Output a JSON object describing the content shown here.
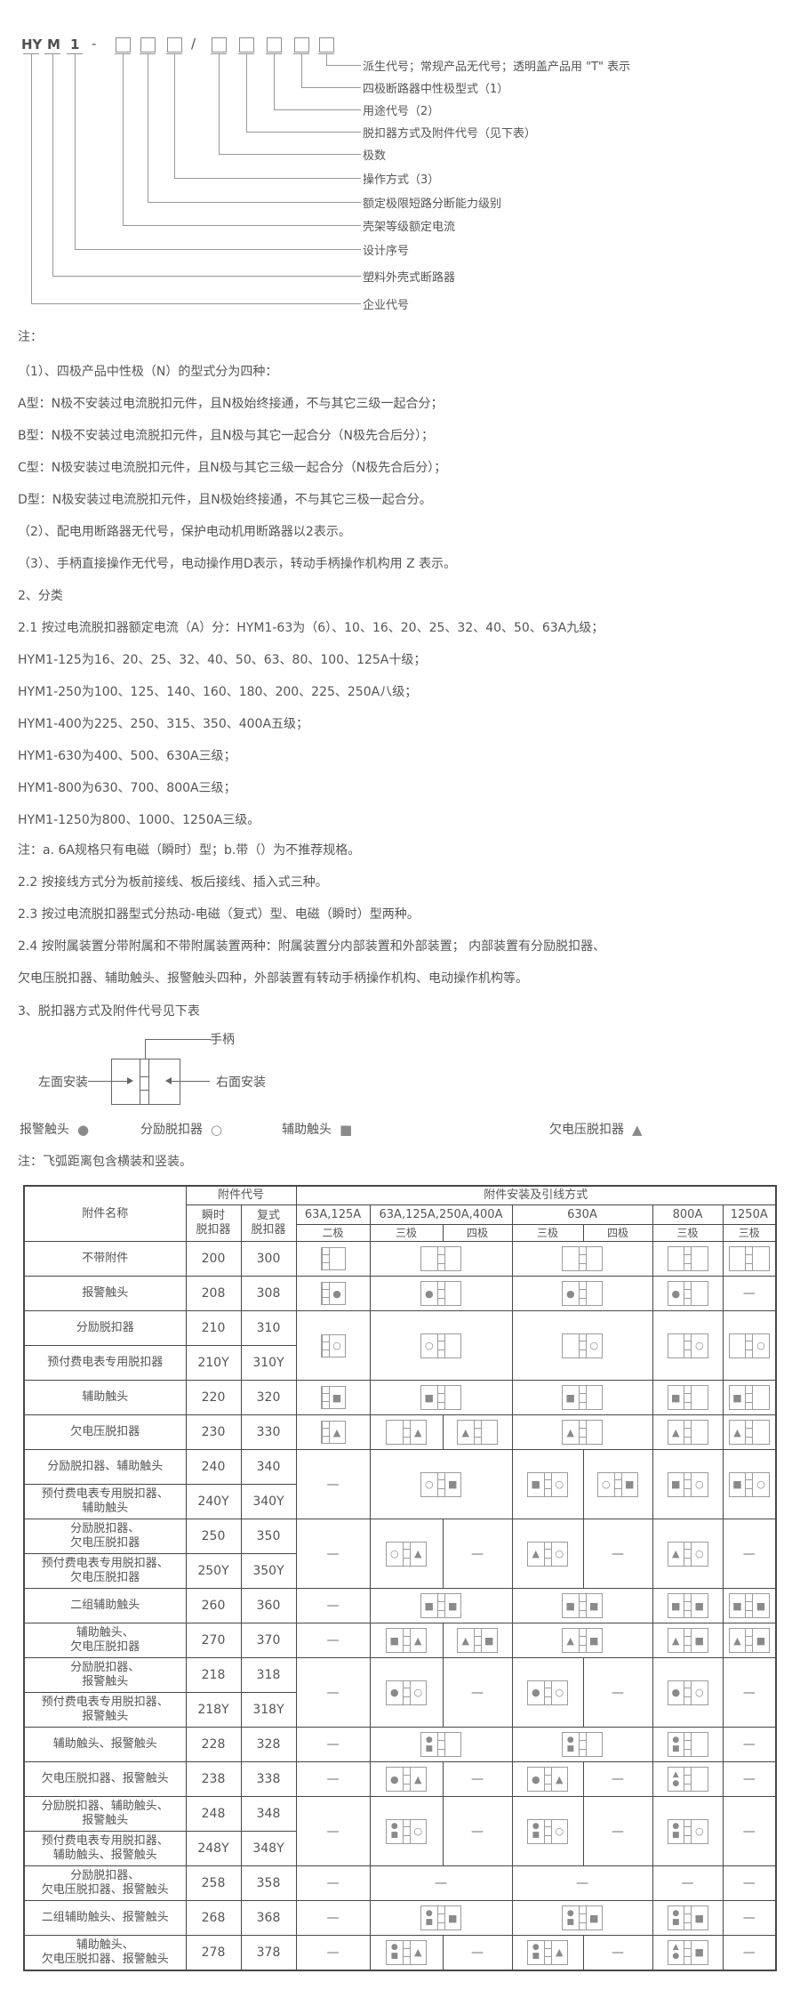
{
  "model_diagram": {
    "letters": [
      "HY",
      "M",
      "1"
    ],
    "dash": "-",
    "slash": "/",
    "callout_labels": [
      "派生代号；常规产品无代号；透明盖产品用 \"T\" 表示",
      "四极断路器中性极型式（1）",
      "用途代号（2）",
      "脱扣器方式及附件代号（见下表）",
      "极数",
      "操作方式（3）",
      "额定极限短路分断能力级别",
      "壳架等级额定电流",
      "设计序号",
      "塑料外壳式断路器",
      "企业代号"
    ]
  },
  "notes": [
    "注：",
    "（1）、四极产品中性极（N）的型式分为四种：",
    "A型：N极不安装过电流脱扣元件，且N极始终接通，不与其它三级一起合分；",
    "B型：N极不安装过电流脱扣元件，且N极与其它一起合分（N极先合后分）；",
    "C型：N极安装过电流脱扣元件，且N极与其它三级一起合分（N极先合后分）；",
    "D型：N极安装过电流脱扣元件，且N极始终接通，不与其它三极一起合分。",
    "（2）、配电用断路器无代号，保护电动机用断路器以2表示。",
    "（3）、手柄直接操作无代号，电动操作用D表示，转动手柄操作机构用 Z 表示。",
    "2、分类",
    "2.1 按过电流脱扣器额定电流（A）分：HYM1-63为（6）、10、16、20、25、32、40、50、63A九级；",
    "HYM1-125为16、20、25、32、40、50、63、80、100、125A十级；",
    "HYM1-250为100、125、140、160、180、200、225、250A八级；",
    "HYM1-400为225、250、315、350、400A五级；",
    "HYM1-630为400、500、630A三级；",
    "HYM1-800为630、700、800A三级；",
    "HYM1-1250为800、1000、1250A三级。",
    "注：a. 6A规格只有电磁（瞬时）型；b.带（）为不推荐规格。",
    "2.2 按接线方式分为板前接线、板后接线、插入式三种。",
    "2.3 按过电流脱扣器型式分热动-电磁（复式）型、电磁（瞬时）型两种。",
    "2.4 按附属装置分带附属和不带附属装置两种：附属装置分内部装置和外部装置； 内部装置有分励脱扣器、",
    "欠电压脱扣器、辅助触头、报警触头四种，外部装置有转动手柄操作机构、电动操作机构等。",
    "3、脱扣器方式及附件代号见下表"
  ],
  "mount_diagram": {
    "handle": "手柄",
    "left": "左面安装",
    "right": "右面安装"
  },
  "legend": {
    "items": [
      {
        "label": "报警触头",
        "symbol": "●"
      },
      {
        "label": "分励脱扣器",
        "symbol": "○"
      },
      {
        "label": "辅助触头",
        "symbol": "■"
      },
      {
        "label": "欠电压脱扣器",
        "symbol": "▲"
      }
    ],
    "note": "注：飞弧距离包含横装和竖装。"
  },
  "table": {
    "header": {
      "name": "附件名称",
      "code_group": "附件代号",
      "install_group": "附件安装及引线方式",
      "code_cols": [
        "瞬时\n脱扣器",
        "复式\n脱扣器"
      ],
      "amp_groups": [
        {
          "label": "63A,125A",
          "poles": [
            "二极"
          ]
        },
        {
          "label": "63A,125A,250A,400A",
          "poles": [
            "三极",
            "四极"
          ]
        },
        {
          "label": "630A",
          "poles": [
            "三极",
            "四极"
          ]
        },
        {
          "label": "800A",
          "poles": [
            "三极"
          ]
        },
        {
          "label": "1250A",
          "poles": [
            "三极"
          ]
        }
      ]
    },
    "rows": [
      {
        "t": "s",
        "n": "不带附件",
        "i": "200",
        "c": "300",
        "cells": [
          {
            "s": 1,
            "b": {
              "h": "l"
            }
          },
          {
            "s": 2,
            "b": {}
          },
          {
            "s": 2,
            "b": {}
          },
          {
            "s": 1,
            "b": {}
          },
          {
            "s": 1,
            "b": {}
          }
        ]
      },
      {
        "t": "s",
        "n": "报警触头",
        "i": "208",
        "c": "308",
        "cells": [
          {
            "s": 1,
            "b": {
              "h": "l",
              "r": [
                "●"
              ]
            }
          },
          {
            "s": 2,
            "b": {
              "l": [
                "●"
              ]
            }
          },
          {
            "s": 2,
            "b": {
              "l": [
                "●"
              ]
            }
          },
          {
            "s": 1,
            "b": {
              "l": [
                "●"
              ]
            }
          },
          {
            "s": 1,
            "d": 1
          }
        ]
      },
      {
        "t": "p",
        "a": [
          "分励脱扣器",
          "210",
          "310"
        ],
        "b": [
          "预付费电表专用脱扣器",
          "210Y",
          "310Y"
        ],
        "cells": [
          {
            "s": 1,
            "b": {
              "h": "l",
              "r": [
                "○"
              ]
            }
          },
          {
            "s": 2,
            "b": {
              "l": [
                "○"
              ]
            }
          },
          {
            "s": 2,
            "b": {
              "r": [
                "○"
              ]
            }
          },
          {
            "s": 1,
            "b": {
              "r": [
                "○"
              ]
            }
          },
          {
            "s": 1,
            "b": {
              "r": [
                "○"
              ]
            }
          }
        ]
      },
      {
        "t": "s",
        "n": "辅助触头",
        "i": "220",
        "c": "320",
        "cells": [
          {
            "s": 1,
            "b": {
              "h": "l",
              "r": [
                "■"
              ]
            }
          },
          {
            "s": 2,
            "b": {
              "l": [
                "■"
              ]
            }
          },
          {
            "s": 2,
            "b": {
              "l": [
                "■"
              ]
            }
          },
          {
            "s": 1,
            "b": {
              "l": [
                "■"
              ]
            }
          },
          {
            "s": 1,
            "b": {
              "l": [
                "■"
              ]
            }
          }
        ]
      },
      {
        "t": "s",
        "n": "欠电压脱扣器",
        "i": "230",
        "c": "330",
        "cells": [
          {
            "s": 1,
            "b": {
              "h": "l",
              "r": [
                "▲"
              ]
            }
          },
          {
            "s": 1,
            "b": {
              "r": [
                "▲"
              ]
            }
          },
          {
            "s": 1,
            "b": {
              "l": [
                "▲"
              ]
            }
          },
          {
            "s": 2,
            "b": {
              "l": [
                "▲"
              ]
            }
          },
          {
            "s": 1,
            "b": {
              "l": [
                "▲"
              ]
            }
          },
          {
            "s": 1,
            "b": {
              "l": [
                "▲"
              ]
            }
          }
        ]
      },
      {
        "t": "p",
        "a": [
          "分励脱扣器、辅助触头",
          "240",
          "340"
        ],
        "b": [
          "预付费电表专用脱扣器、\n辅助触头",
          "240Y",
          "340Y"
        ],
        "cells": [
          {
            "s": 1,
            "d": 1
          },
          {
            "s": 2,
            "b": {
              "l": [
                "○"
              ],
              "r": [
                "■"
              ]
            }
          },
          {
            "s": 1,
            "b": {
              "l": [
                "■"
              ],
              "r": [
                "○"
              ]
            }
          },
          {
            "s": 1,
            "b": {
              "l": [
                "○"
              ],
              "r": [
                "■"
              ]
            }
          },
          {
            "s": 1,
            "b": {
              "l": [
                "■"
              ],
              "r": [
                "○"
              ]
            }
          },
          {
            "s": 1,
            "b": {
              "l": [
                "■"
              ],
              "r": [
                "○"
              ]
            }
          }
        ]
      },
      {
        "t": "p",
        "a": [
          "分励脱扣器、\n欠电压脱扣器",
          "250",
          "350"
        ],
        "b": [
          "预付费电表专用脱扣器、\n欠电压脱扣器",
          "250Y",
          "350Y"
        ],
        "cells": [
          {
            "s": 1,
            "d": 1
          },
          {
            "s": 1,
            "b": {
              "l": [
                "○"
              ],
              "r": [
                "▲"
              ]
            }
          },
          {
            "s": 1,
            "d": 1
          },
          {
            "s": 1,
            "b": {
              "l": [
                "▲"
              ],
              "r": [
                "○"
              ]
            }
          },
          {
            "s": 1,
            "d": 1
          },
          {
            "s": 1,
            "b": {
              "l": [
                "▲"
              ],
              "r": [
                "○"
              ]
            }
          },
          {
            "s": 1,
            "d": 1
          }
        ]
      },
      {
        "t": "s",
        "n": "二组辅助触头",
        "i": "260",
        "c": "360",
        "cells": [
          {
            "s": 1,
            "d": 1
          },
          {
            "s": 2,
            "b": {
              "l": [
                "■"
              ],
              "r": [
                "■"
              ]
            }
          },
          {
            "s": 2,
            "b": {
              "l": [
                "■"
              ],
              "r": [
                "■"
              ]
            }
          },
          {
            "s": 1,
            "b": {
              "l": [
                "■"
              ],
              "r": [
                "■"
              ]
            }
          },
          {
            "s": 1,
            "b": {
              "l": [
                "■"
              ],
              "r": [
                "■"
              ]
            }
          }
        ]
      },
      {
        "t": "s",
        "n": "辅助触头、\n欠电压脱扣器",
        "i": "270",
        "c": "370",
        "cells": [
          {
            "s": 1,
            "d": 1
          },
          {
            "s": 1,
            "b": {
              "l": [
                "■"
              ],
              "r": [
                "▲"
              ]
            }
          },
          {
            "s": 1,
            "b": {
              "l": [
                "▲"
              ],
              "r": [
                "■"
              ]
            }
          },
          {
            "s": 2,
            "b": {
              "l": [
                "▲"
              ],
              "r": [
                "■"
              ]
            }
          },
          {
            "s": 1,
            "b": {
              "l": [
                "▲"
              ],
              "r": [
                "■"
              ]
            }
          },
          {
            "s": 1,
            "b": {
              "l": [
                "▲"
              ],
              "r": [
                "■"
              ]
            }
          }
        ]
      },
      {
        "t": "p",
        "a": [
          "分励脱扣器、\n报警触头",
          "218",
          "318"
        ],
        "b": [
          "预付费电表专用脱扣器、\n报警触头",
          "218Y",
          "318Y"
        ],
        "cells": [
          {
            "s": 1,
            "d": 1
          },
          {
            "s": 1,
            "b": {
              "l": [
                "●"
              ],
              "r": [
                "○"
              ]
            }
          },
          {
            "s": 1,
            "d": 1
          },
          {
            "s": 1,
            "b": {
              "l": [
                "●"
              ],
              "r": [
                "○"
              ]
            }
          },
          {
            "s": 1,
            "d": 1
          },
          {
            "s": 1,
            "b": {
              "l": [
                "●"
              ],
              "r": [
                "○"
              ]
            }
          },
          {
            "s": 1,
            "d": 1
          }
        ]
      },
      {
        "t": "s",
        "n": "辅助触头、报警触头",
        "i": "228",
        "c": "328",
        "cells": [
          {
            "s": 1,
            "d": 1
          },
          {
            "s": 2,
            "b": {
              "l": [
                "●",
                "■"
              ]
            }
          },
          {
            "s": 2,
            "b": {
              "l": [
                "●",
                "■"
              ]
            }
          },
          {
            "s": 1,
            "b": {
              "l": [
                "●",
                "■"
              ]
            }
          },
          {
            "s": 1,
            "d": 1
          }
        ]
      },
      {
        "t": "s",
        "n": "欠电压脱扣器、报警触头",
        "i": "238",
        "c": "338",
        "cells": [
          {
            "s": 1,
            "d": 1
          },
          {
            "s": 1,
            "b": {
              "l": [
                "●"
              ],
              "r": [
                "▲"
              ]
            }
          },
          {
            "s": 1,
            "d": 1
          },
          {
            "s": 1,
            "b": {
              "l": [
                "●"
              ],
              "r": [
                "▲"
              ]
            }
          },
          {
            "s": 1,
            "d": 1
          },
          {
            "s": 1,
            "b": {
              "l": [
                "▲",
                "●"
              ]
            }
          },
          {
            "s": 1,
            "d": 1
          }
        ]
      },
      {
        "t": "p",
        "a": [
          "分励脱扣器、辅助触头、\n报警触头",
          "248",
          "348"
        ],
        "b": [
          "预付费电表专用脱扣器、\n辅助触头、报警触头",
          "248Y",
          "348Y"
        ],
        "cells": [
          {
            "s": 1,
            "d": 1
          },
          {
            "s": 1,
            "b": {
              "l": [
                "●",
                "■"
              ],
              "r": [
                "○"
              ]
            }
          },
          {
            "s": 1,
            "d": 1
          },
          {
            "s": 1,
            "b": {
              "l": [
                "●",
                "■"
              ],
              "r": [
                "○"
              ]
            }
          },
          {
            "s": 1,
            "d": 1
          },
          {
            "s": 1,
            "b": {
              "l": [
                "●",
                "■"
              ],
              "r": [
                "○"
              ]
            }
          },
          {
            "s": 1,
            "d": 1
          }
        ]
      },
      {
        "t": "s",
        "n": "分励脱扣器、\n欠电压脱扣器、报警触头",
        "i": "258",
        "c": "358",
        "cells": [
          {
            "s": 1,
            "d": 1
          },
          {
            "s": 2,
            "d": 1
          },
          {
            "s": 2,
            "d": 1
          },
          {
            "s": 1,
            "d": 1
          },
          {
            "s": 1,
            "d": 1
          }
        ]
      },
      {
        "t": "s",
        "n": "二组辅助触头、报警触头",
        "i": "268",
        "c": "368",
        "cells": [
          {
            "s": 1,
            "d": 1
          },
          {
            "s": 2,
            "b": {
              "l": [
                "●",
                "■"
              ],
              "r": [
                "■"
              ]
            }
          },
          {
            "s": 2,
            "b": {
              "l": [
                "●",
                "■"
              ],
              "r": [
                "■"
              ]
            }
          },
          {
            "s": 1,
            "b": {
              "l": [
                "●",
                "■"
              ],
              "r": [
                "■"
              ]
            }
          },
          {
            "s": 1,
            "d": 1
          }
        ]
      },
      {
        "t": "s",
        "n": "辅助触头、\n欠电压脱扣器、报警触头",
        "i": "278",
        "c": "378",
        "cells": [
          {
            "s": 1,
            "d": 1
          },
          {
            "s": 1,
            "b": {
              "l": [
                "●",
                "■"
              ],
              "r": [
                "▲"
              ]
            }
          },
          {
            "s": 1,
            "d": 1
          },
          {
            "s": 1,
            "b": {
              "l": [
                "●",
                "■"
              ],
              "r": [
                "▲"
              ]
            }
          },
          {
            "s": 1,
            "d": 1
          },
          {
            "s": 1,
            "b": {
              "l": [
                "▲",
                "●"
              ],
              "r": [
                "■"
              ]
            }
          },
          {
            "s": 1,
            "d": 1
          }
        ]
      }
    ]
  }
}
